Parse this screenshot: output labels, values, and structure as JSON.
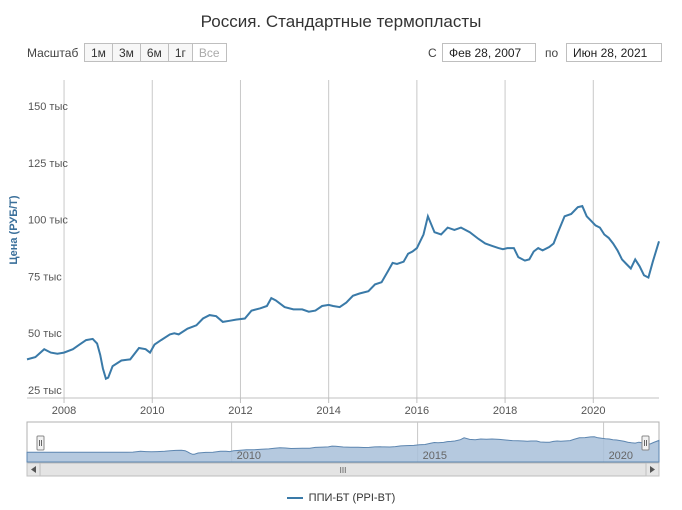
{
  "chart_data": {
    "type": "line",
    "title": "Россия. Стандартные термопласты",
    "ylabel": "Цена (РУБ/Т)",
    "xlabel": "",
    "ylim": [
      25000,
      165000
    ],
    "y_ticks": [
      {
        "v": 25000,
        "label": "25 тыс"
      },
      {
        "v": 50000,
        "label": "50 тыс"
      },
      {
        "v": 75000,
        "label": "75 тыс"
      },
      {
        "v": 100000,
        "label": "100 тыс"
      },
      {
        "v": 125000,
        "label": "125 тыс"
      },
      {
        "v": 150000,
        "label": "150 тыс"
      }
    ],
    "x_ticks": [
      "2008",
      "2010",
      "2012",
      "2014",
      "2016",
      "2018",
      "2020"
    ],
    "x_range": [
      2007.16,
      2021.49
    ],
    "grid": "vertical",
    "legend_placement": "bottom-center",
    "series": [
      {
        "name": "ППИ-БТ (PPI-BT)",
        "color": "#3a7aa8",
        "x": [
          2007.16,
          2007.35,
          2007.55,
          2007.7,
          2007.85,
          2008.0,
          2008.2,
          2008.35,
          2008.5,
          2008.65,
          2008.75,
          2008.82,
          2008.88,
          2008.95,
          2009.0,
          2009.1,
          2009.3,
          2009.5,
          2009.7,
          2009.85,
          2009.95,
          2010.05,
          2010.2,
          2010.4,
          2010.5,
          2010.6,
          2010.8,
          2011.0,
          2011.15,
          2011.3,
          2011.45,
          2011.6,
          2011.75,
          2011.9,
          2012.1,
          2012.25,
          2012.45,
          2012.6,
          2012.7,
          2012.8,
          2013.0,
          2013.2,
          2013.4,
          2013.55,
          2013.7,
          2013.85,
          2014.0,
          2014.1,
          2014.25,
          2014.4,
          2014.55,
          2014.7,
          2014.9,
          2015.05,
          2015.2,
          2015.35,
          2015.45,
          2015.55,
          2015.7,
          2015.8,
          2015.9,
          2016.0,
          2016.15,
          2016.25,
          2016.4,
          2016.55,
          2016.7,
          2016.85,
          2017.0,
          2017.2,
          2017.4,
          2017.55,
          2017.7,
          2017.85,
          2017.95,
          2018.05,
          2018.2,
          2018.3,
          2018.45,
          2018.55,
          2018.65,
          2018.75,
          2018.85,
          2019.0,
          2019.1,
          2019.2,
          2019.35,
          2019.5,
          2019.65,
          2019.75,
          2019.85,
          2019.95,
          2020.05,
          2020.15,
          2020.25,
          2020.35,
          2020.45,
          2020.55,
          2020.65,
          2020.75,
          2020.85,
          2020.95,
          2021.05,
          2021.15,
          2021.25,
          2021.35,
          2021.49
        ],
        "y": [
          42000,
          43000,
          46500,
          45000,
          44500,
          45000,
          46500,
          48500,
          50500,
          51000,
          49000,
          44000,
          38000,
          33500,
          34000,
          39000,
          41500,
          42000,
          47000,
          46500,
          45000,
          48500,
          50500,
          53000,
          53500,
          53000,
          55500,
          57000,
          60000,
          61500,
          61000,
          58500,
          59000,
          59500,
          60000,
          63500,
          64500,
          65500,
          69000,
          68000,
          65000,
          64000,
          64000,
          63000,
          63500,
          65500,
          66000,
          65500,
          65000,
          67000,
          70000,
          71000,
          72000,
          75000,
          76000,
          81000,
          84500,
          84000,
          85000,
          88500,
          89500,
          91000,
          97000,
          105000,
          98000,
          97000,
          100000,
          99000,
          100000,
          98000,
          95000,
          93000,
          92000,
          91000,
          90500,
          91000,
          91000,
          87000,
          85500,
          86000,
          89500,
          91000,
          90000,
          91500,
          93000,
          98000,
          105000,
          106000,
          109000,
          109500,
          105000,
          103000,
          101000,
          100000,
          97000,
          95500,
          93000,
          90000,
          86000,
          84000,
          82000,
          86000,
          83000,
          79000,
          78000,
          85000,
          94000
        ]
      }
    ]
  },
  "controls": {
    "zoom_label": "Масштаб",
    "zoom_buttons": [
      "1м",
      "3м",
      "6м",
      "1г",
      "Все"
    ],
    "from_label": "С",
    "from_value": "Фев 28, 2007",
    "to_label": "по",
    "to_value": "Июн 28, 2021"
  },
  "navigator": {
    "labels": [
      "2010",
      "2015",
      "2020"
    ],
    "scroll_grip": "III"
  }
}
